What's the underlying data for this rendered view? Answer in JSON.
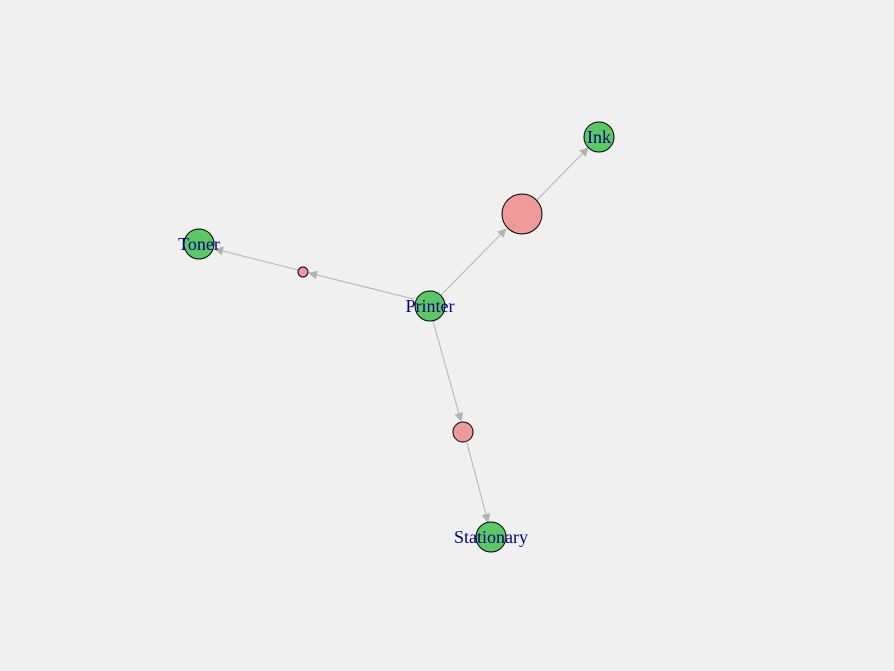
{
  "graph": {
    "colors": {
      "item_node": "#5cc863",
      "rule_node": "#ef9a9a",
      "edge": "#b3b3b3",
      "label": "#00008b",
      "background": "#f0f0f0"
    },
    "item_nodes": [
      {
        "id": "printer",
        "label": "Printer"
      },
      {
        "id": "ink",
        "label": "Ink"
      },
      {
        "id": "toner",
        "label": "Toner"
      },
      {
        "id": "stationary",
        "label": "Stationary"
      }
    ],
    "rule_nodes": [
      {
        "id": "rule-ink",
        "from": "printer",
        "to": "ink",
        "size": "large"
      },
      {
        "id": "rule-toner",
        "from": "printer",
        "to": "toner",
        "size": "small"
      },
      {
        "id": "rule-stationary",
        "from": "printer",
        "to": "stationary",
        "size": "medium"
      }
    ]
  }
}
